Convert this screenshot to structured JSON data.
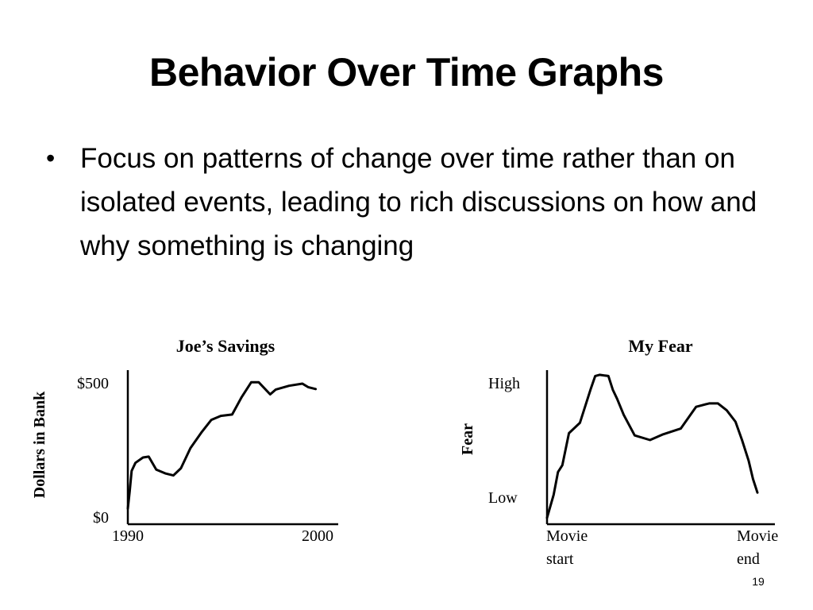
{
  "slide": {
    "title": "Behavior Over Time Graphs",
    "bullet": "Focus on patterns of change over time rather than on isolated events, leading to rich discussions on how and why something is changing",
    "page_number": "19"
  },
  "chart_data": [
    {
      "type": "line",
      "title": "Joe’s Savings",
      "xlabel": "",
      "ylabel": "Dollars in Bank",
      "xlim": [
        1990,
        2000
      ],
      "ylim": [
        0,
        500
      ],
      "x_tick_labels": [
        "1990",
        "2000"
      ],
      "y_tick_labels": [
        "$500",
        "$0"
      ],
      "grid": false,
      "series": [
        {
          "x": [
            1990.0,
            1990.1,
            1990.2,
            1990.4,
            1990.8,
            1991.1,
            1991.5,
            1992.0,
            1992.4,
            1992.8,
            1993.3,
            1993.9,
            1994.4,
            1994.9,
            1995.5,
            1996.0,
            1996.5,
            1996.9,
            1997.5,
            1997.8,
            1998.0,
            1998.5,
            1999.2,
            1999.5,
            1999.9
          ],
          "y": [
            35,
            100,
            175,
            205,
            225,
            228,
            180,
            165,
            158,
            185,
            260,
            320,
            365,
            380,
            385,
            450,
            505,
            505,
            460,
            478,
            482,
            492,
            500,
            487,
            480
          ]
        }
      ]
    },
    {
      "type": "line",
      "title": "My Fear",
      "xlabel": "",
      "ylabel": "Fear",
      "x_tick_labels": [
        "Movie start",
        "Movie end"
      ],
      "y_tick_labels": [
        "High",
        "Low"
      ],
      "y_tick_values": [
        1,
        0
      ],
      "xlim": [
        0,
        1
      ],
      "grid": false,
      "series": [
        {
          "x": [
            0.0,
            0.03,
            0.05,
            0.07,
            0.1,
            0.15,
            0.2,
            0.22,
            0.24,
            0.28,
            0.3,
            0.32,
            0.35,
            0.4,
            0.47,
            0.53,
            0.61,
            0.68,
            0.74,
            0.78,
            0.82,
            0.86,
            0.89,
            0.92,
            0.94,
            0.96
          ],
          "y": [
            -0.18,
            0.02,
            0.22,
            0.28,
            0.56,
            0.65,
            0.95,
            1.06,
            1.07,
            1.06,
            0.94,
            0.86,
            0.72,
            0.54,
            0.5,
            0.55,
            0.6,
            0.79,
            0.82,
            0.82,
            0.76,
            0.66,
            0.5,
            0.32,
            0.16,
            0.04
          ]
        }
      ]
    }
  ]
}
